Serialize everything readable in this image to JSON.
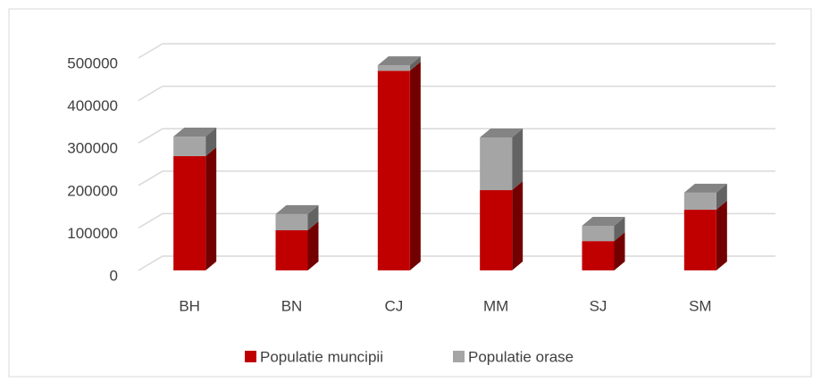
{
  "chart_data": {
    "type": "bar3d_stacked",
    "categories": [
      "BH",
      "BN",
      "CJ",
      "MM",
      "SJ",
      "SM"
    ],
    "series": [
      {
        "name": "Populatie muncipii",
        "color": "#c00000",
        "values": [
          269000,
          94500,
          470000,
          189000,
          69000,
          143000
        ]
      },
      {
        "name": "Populatie orase",
        "color": "#a5a5a5",
        "values": [
          46000,
          38000,
          13000,
          124000,
          36000,
          40000
        ]
      }
    ],
    "ylim": [
      0,
      500000
    ],
    "yticks": [
      0,
      100000,
      200000,
      300000,
      400000,
      500000
    ],
    "grid": true,
    "legend": "bottom"
  }
}
